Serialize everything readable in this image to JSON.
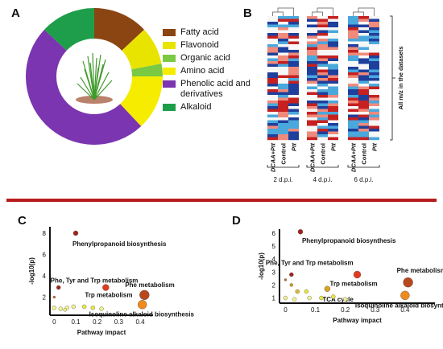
{
  "panels": {
    "a": "A",
    "b": "B",
    "c": "C",
    "d": "D"
  },
  "chart_data": [
    {
      "type": "pie",
      "panel": "A",
      "style": "donut",
      "categories": [
        "Fatty acid",
        "Flavonoid",
        "Organic acid",
        "Amino acid",
        "Phenolic acid and derivatives",
        "Alkaloid"
      ],
      "values": [
        13,
        9,
        3,
        13,
        49,
        13
      ],
      "colors": [
        "#8b4513",
        "#e8e400",
        "#7ac943",
        "#f5ec00",
        "#7b35b0",
        "#1e9e4a"
      ],
      "legend_placement": "right"
    },
    {
      "type": "heatmap",
      "panel": "B",
      "groups": [
        {
          "label": "2 d.p.i.",
          "columns": [
            "DCAA+Ptt",
            "Control",
            "Ptt"
          ]
        },
        {
          "label": "4 d.p.i.",
          "columns": [
            "DCAA+Ptt",
            "Control",
            "Ptt"
          ]
        },
        {
          "label": "6 d.p.i.",
          "columns": [
            "DCAA+Ptt",
            "Control",
            "Ptt"
          ]
        }
      ],
      "row_axis_label": "All m/z in the datasets",
      "colormap": [
        "#1f3f9c",
        "#4aa8dd",
        "#f7f7f7",
        "#f08a7a",
        "#c62020"
      ]
    },
    {
      "type": "scatter",
      "panel": "C",
      "xlabel": "Pathway impact",
      "ylabel": "-log10(p)",
      "xticks": [
        0,
        0.1,
        0.2,
        0.3,
        0.4
      ],
      "yticks": [
        2,
        4,
        6,
        8
      ],
      "xlim": [
        -0.02,
        0.46
      ],
      "ylim": [
        0.3,
        8.6
      ],
      "points": [
        {
          "x": 0.1,
          "y": 8.0,
          "r": 3,
          "color": "#a0231a",
          "label": "Phenylpropanoid biosynthesis"
        },
        {
          "x": 0.02,
          "y": 2.9,
          "r": 2.5,
          "color": "#a0231a",
          "label": "Phe, Tyr and Trp metabolism"
        },
        {
          "x": 0.24,
          "y": 2.9,
          "r": 4,
          "color": "#e03a1f",
          "label": "Trp metabolism"
        },
        {
          "x": 0.42,
          "y": 2.2,
          "r": 6,
          "color": "#b8471c",
          "label": "Phe metabolism"
        },
        {
          "x": 0.41,
          "y": 1.3,
          "r": 5.5,
          "color": "#f08a1c",
          "label": "Isoquinoline alkaloid biosynthesis"
        },
        {
          "x": 0.0,
          "y": 2.0,
          "r": 1.5,
          "color": "#cc6a2a",
          "label": ""
        },
        {
          "x": 0.0,
          "y": 1.0,
          "r": 2.5,
          "color": "#f2f28c",
          "label": ""
        },
        {
          "x": 0.03,
          "y": 0.9,
          "r": 2.5,
          "color": "#f2f28c",
          "label": ""
        },
        {
          "x": 0.06,
          "y": 1.0,
          "r": 2.5,
          "color": "#f2f28c",
          "label": ""
        },
        {
          "x": 0.09,
          "y": 1.1,
          "r": 2.5,
          "color": "#f2f28c",
          "label": ""
        },
        {
          "x": 0.14,
          "y": 1.1,
          "r": 2.5,
          "color": "#e8e93a",
          "label": ""
        },
        {
          "x": 0.18,
          "y": 1.0,
          "r": 2.5,
          "color": "#e8e93a",
          "label": ""
        },
        {
          "x": 0.22,
          "y": 0.9,
          "r": 2.5,
          "color": "#f2f28c",
          "label": ""
        },
        {
          "x": 0.05,
          "y": 0.8,
          "r": 2,
          "color": "#f2f28c",
          "label": ""
        }
      ]
    },
    {
      "type": "scatter",
      "panel": "D",
      "xlabel": "Pathway impact",
      "ylabel": "-log10(p)",
      "xticks": [
        0,
        0.1,
        0.2,
        0.3,
        0.4
      ],
      "yticks": [
        1,
        2,
        3,
        4,
        5,
        6
      ],
      "xlim": [
        -0.02,
        0.5
      ],
      "ylim": [
        0.6,
        6.3
      ],
      "points": [
        {
          "x": 0.05,
          "y": 6.1,
          "r": 3,
          "color": "#a0231a",
          "label": "Phenylpropanoid biosynthesis"
        },
        {
          "x": 0.02,
          "y": 2.8,
          "r": 2.5,
          "color": "#a0231a",
          "label": "Phe, Tyr and Trp metabolism"
        },
        {
          "x": 0.24,
          "y": 2.8,
          "r": 4.5,
          "color": "#e03a1f",
          "label": "Trp metabolism"
        },
        {
          "x": 0.41,
          "y": 2.2,
          "r": 6,
          "color": "#b8471c",
          "label": "Phe metabolism"
        },
        {
          "x": 0.14,
          "y": 1.7,
          "r": 3.5,
          "color": "#d9a520",
          "label": "TCA cycle"
        },
        {
          "x": 0.4,
          "y": 1.2,
          "r": 5.5,
          "color": "#f08a1c",
          "label": "Isoquinoline alkaloid biosynthesis"
        },
        {
          "x": 0.0,
          "y": 2.4,
          "r": 1.5,
          "color": "#cc6a2a",
          "label": ""
        },
        {
          "x": 0.02,
          "y": 2.0,
          "r": 2,
          "color": "#d2a32a",
          "label": ""
        },
        {
          "x": 0.04,
          "y": 1.5,
          "r": 2.5,
          "color": "#e5b830",
          "label": ""
        },
        {
          "x": 0.07,
          "y": 1.5,
          "r": 2.5,
          "color": "#e8e93a",
          "label": ""
        },
        {
          "x": 0.0,
          "y": 1.0,
          "r": 2.5,
          "color": "#f2f28c",
          "label": ""
        },
        {
          "x": 0.03,
          "y": 0.9,
          "r": 2.5,
          "color": "#f2f28c",
          "label": ""
        },
        {
          "x": 0.08,
          "y": 1.0,
          "r": 2.5,
          "color": "#f2f28c",
          "label": ""
        },
        {
          "x": 0.12,
          "y": 1.0,
          "r": 2.5,
          "color": "#e8e93a",
          "label": ""
        },
        {
          "x": 0.16,
          "y": 1.1,
          "r": 2.5,
          "color": "#e8e93a",
          "label": ""
        },
        {
          "x": 0.2,
          "y": 0.9,
          "r": 2.5,
          "color": "#f2f28c",
          "label": ""
        }
      ]
    }
  ]
}
